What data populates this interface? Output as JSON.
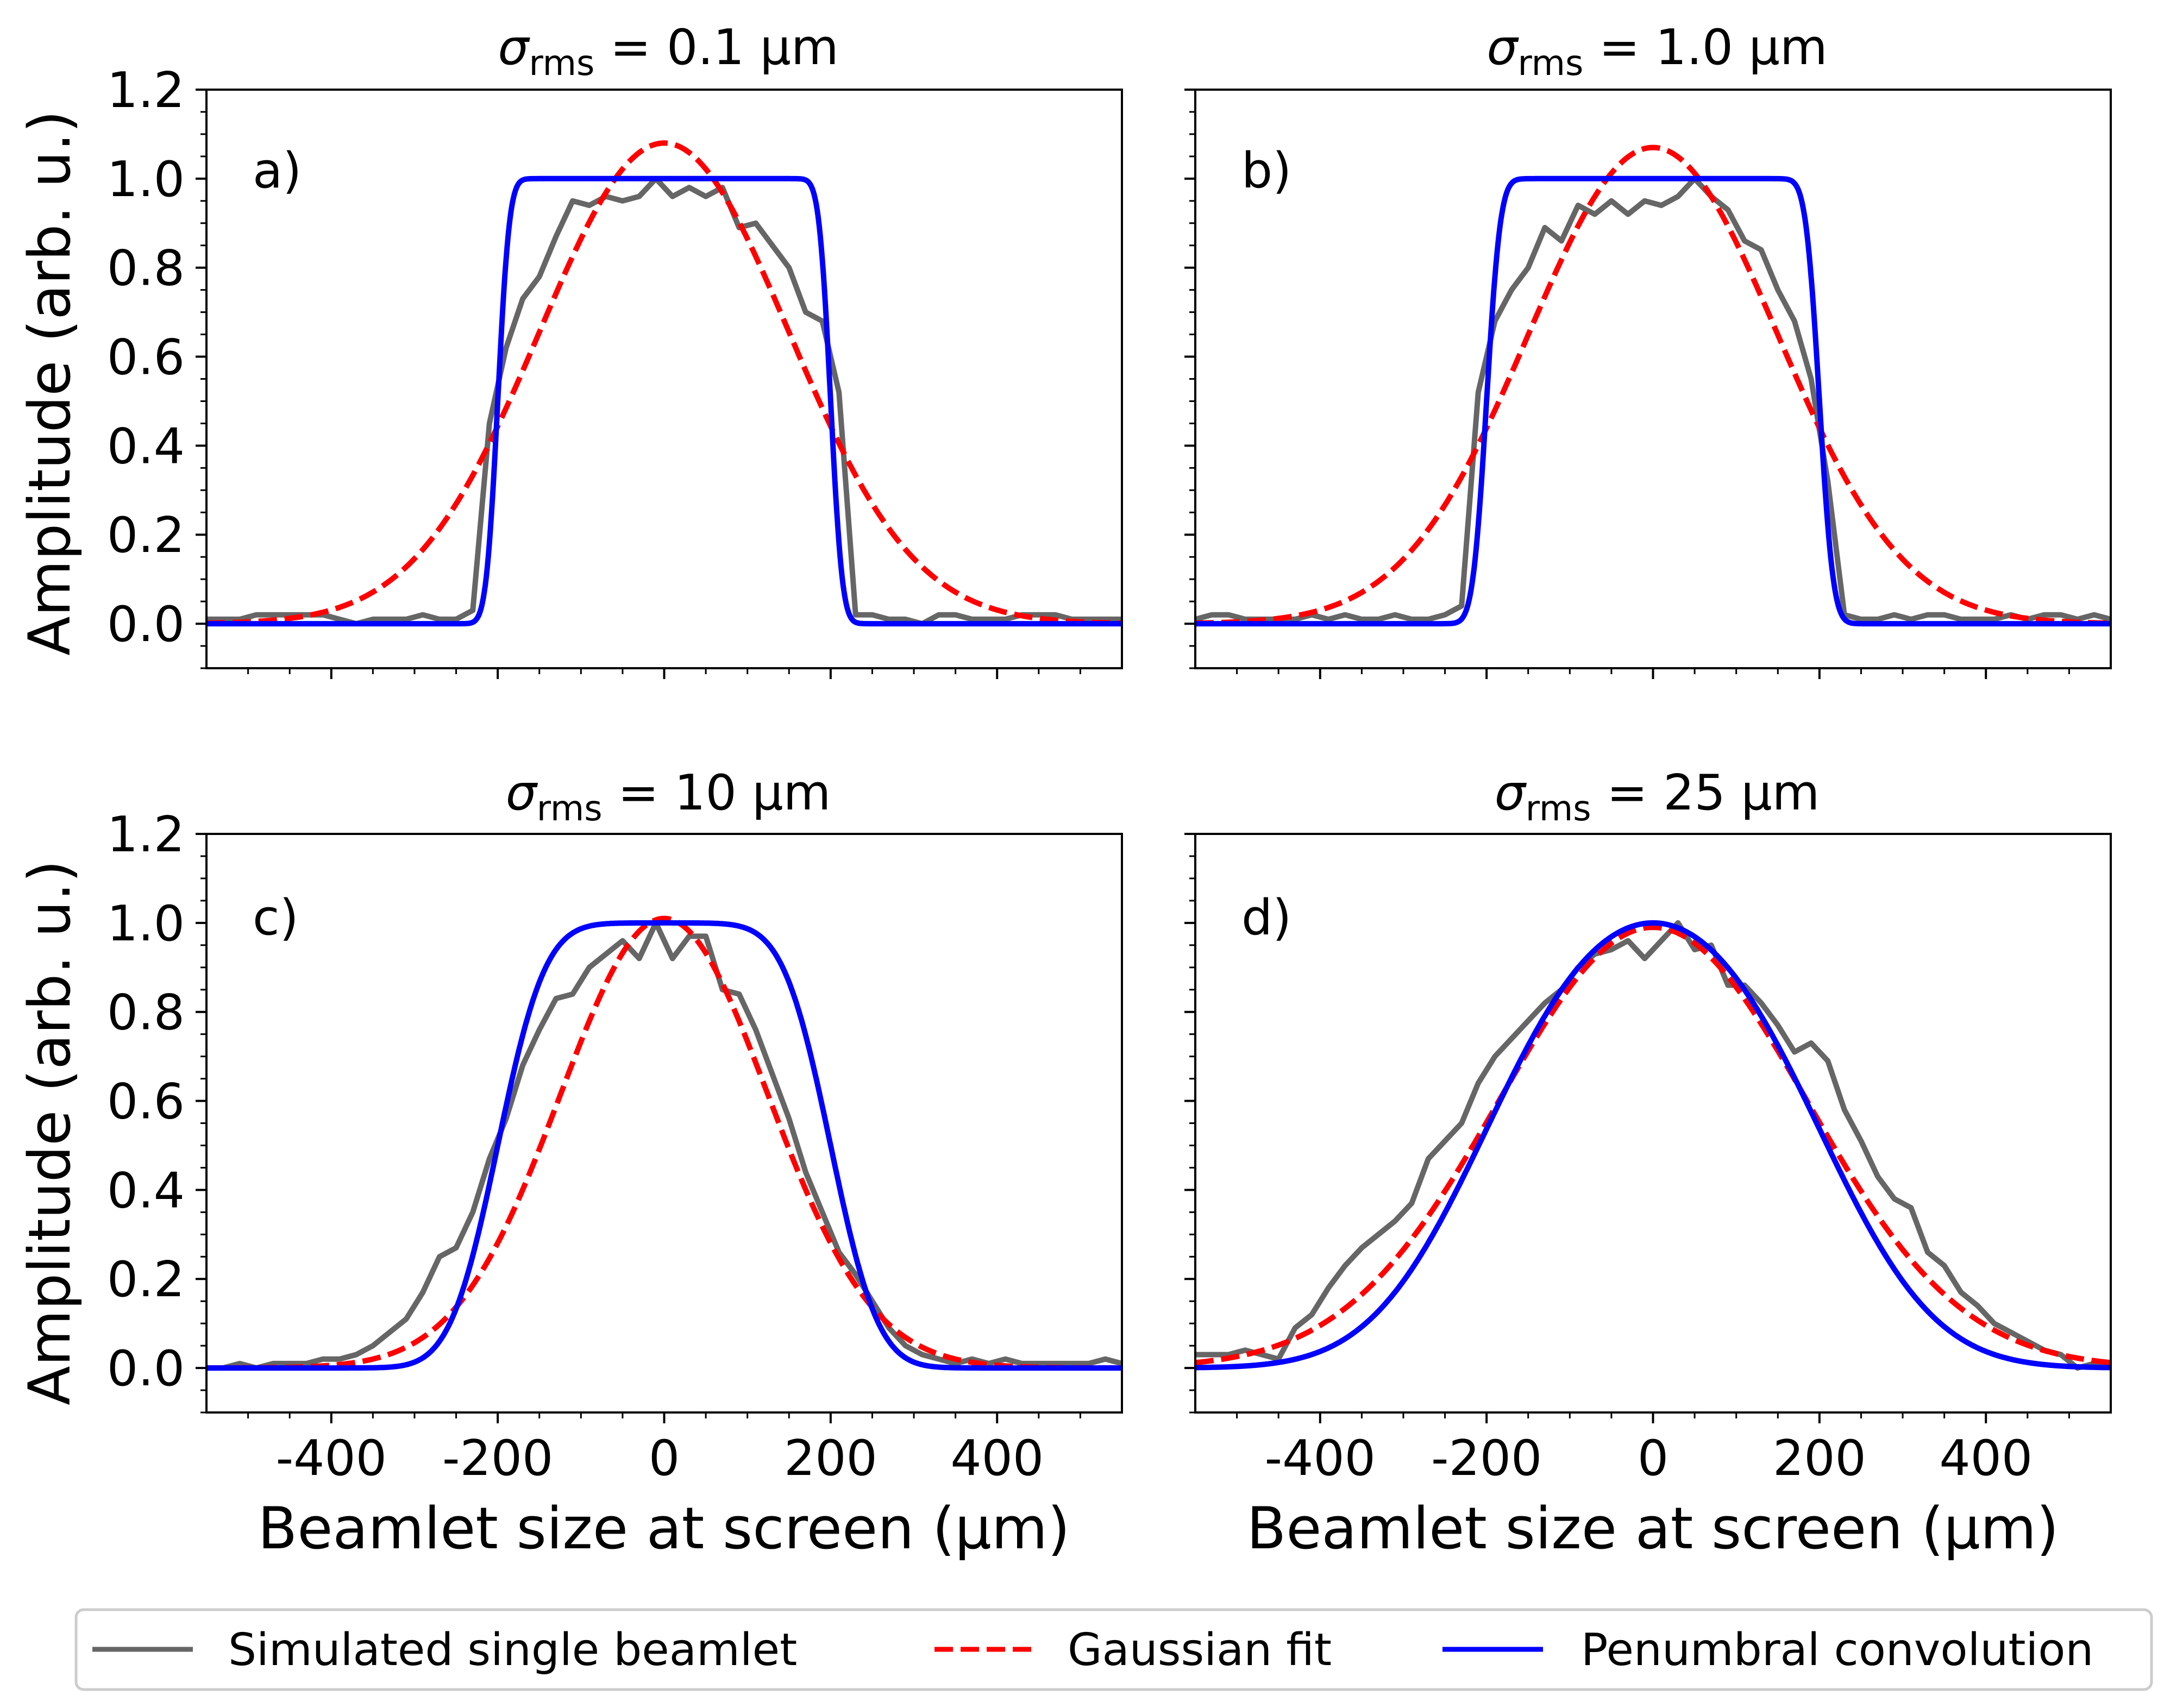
{
  "chart_data": {
    "type": "line",
    "ylabel": "Amplitude (arb. u.)",
    "xlabel": "Beamlet size at screen (μm)",
    "xlim": [
      -550,
      550
    ],
    "ylim": [
      -0.1,
      1.2
    ],
    "x_ticks": [
      -400,
      -200,
      0,
      200,
      400
    ],
    "x_tick_labels": [
      "-400",
      "-200",
      "0",
      "200",
      "400"
    ],
    "y_ticks": [
      0.0,
      0.2,
      0.4,
      0.6,
      0.8,
      1.0,
      1.2
    ],
    "y_tick_labels": [
      "0.0",
      "0.2",
      "0.4",
      "0.6",
      "0.8",
      "1.0",
      "1.2"
    ],
    "legend": {
      "position": "bottom-center",
      "entries": [
        {
          "label": "Simulated single beamlet",
          "color": "#666666",
          "style": "solid"
        },
        {
          "label": "Gaussian fit",
          "color": "#ff0000",
          "style": "dashed"
        },
        {
          "label": "Penumbral convolution",
          "color": "#0000ff",
          "style": "solid"
        }
      ]
    },
    "colors": {
      "simulated": "#666666",
      "gaussian": "#ff0000",
      "penumbral": "#0000ff"
    },
    "panels": [
      {
        "letter": "a)",
        "title_symbol": "σ",
        "title_sub": "rms",
        "title_rest": " = 0.1 μm",
        "gaussian": {
          "amplitude": 1.08,
          "sigma": 150
        },
        "penumbral": {
          "half_width": 200,
          "edge_sigma": 11
        },
        "simulated": {
          "x": [
            -550,
            -530,
            -510,
            -490,
            -470,
            -450,
            -430,
            -410,
            -390,
            -370,
            -350,
            -330,
            -310,
            -290,
            -270,
            -250,
            -230,
            -210,
            -190,
            -170,
            -150,
            -130,
            -110,
            -90,
            -70,
            -50,
            -30,
            -10,
            10,
            30,
            50,
            70,
            90,
            110,
            130,
            150,
            170,
            190,
            210,
            230,
            250,
            270,
            290,
            310,
            330,
            350,
            370,
            390,
            410,
            430,
            450,
            470,
            490,
            510,
            530,
            550
          ],
          "y": [
            0.01,
            0.01,
            0.01,
            0.02,
            0.02,
            0.02,
            0.02,
            0.02,
            0.01,
            0.0,
            0.01,
            0.01,
            0.01,
            0.02,
            0.01,
            0.01,
            0.03,
            0.45,
            0.62,
            0.73,
            0.78,
            0.87,
            0.95,
            0.94,
            0.96,
            0.95,
            0.96,
            1.0,
            0.96,
            0.98,
            0.96,
            0.98,
            0.89,
            0.9,
            0.85,
            0.8,
            0.7,
            0.68,
            0.52,
            0.02,
            0.02,
            0.01,
            0.01,
            0.0,
            0.02,
            0.02,
            0.01,
            0.01,
            0.01,
            0.02,
            0.02,
            0.02,
            0.01,
            0.01,
            0.01,
            0.01
          ]
        }
      },
      {
        "letter": "b)",
        "title_symbol": "σ",
        "title_sub": "rms",
        "title_rest": " = 1.0 μm",
        "gaussian": {
          "amplitude": 1.07,
          "sigma": 150
        },
        "penumbral": {
          "half_width": 200,
          "edge_sigma": 13
        },
        "simulated": {
          "x": [
            -550,
            -530,
            -510,
            -490,
            -470,
            -450,
            -430,
            -410,
            -390,
            -370,
            -350,
            -330,
            -310,
            -290,
            -270,
            -250,
            -230,
            -210,
            -190,
            -170,
            -150,
            -130,
            -110,
            -90,
            -70,
            -50,
            -30,
            -10,
            10,
            30,
            50,
            70,
            90,
            110,
            130,
            150,
            170,
            190,
            210,
            230,
            250,
            270,
            290,
            310,
            330,
            350,
            370,
            390,
            410,
            430,
            450,
            470,
            490,
            510,
            530,
            550
          ],
          "y": [
            0.01,
            0.02,
            0.02,
            0.01,
            0.01,
            0.01,
            0.01,
            0.02,
            0.01,
            0.02,
            0.01,
            0.01,
            0.02,
            0.01,
            0.01,
            0.02,
            0.04,
            0.52,
            0.68,
            0.75,
            0.8,
            0.89,
            0.86,
            0.94,
            0.92,
            0.95,
            0.92,
            0.95,
            0.94,
            0.96,
            1.0,
            0.96,
            0.93,
            0.86,
            0.84,
            0.75,
            0.68,
            0.55,
            0.32,
            0.02,
            0.01,
            0.01,
            0.02,
            0.01,
            0.02,
            0.02,
            0.01,
            0.01,
            0.01,
            0.02,
            0.01,
            0.02,
            0.02,
            0.01,
            0.02,
            0.01
          ]
        }
      },
      {
        "letter": "c)",
        "title_symbol": "σ",
        "title_sub": "rms",
        "title_rest": " = 10 μm",
        "gaussian": {
          "amplitude": 1.01,
          "sigma": 125
        },
        "penumbral": {
          "half_width": 200,
          "edge_sigma": 45
        },
        "simulated": {
          "x": [
            -550,
            -530,
            -510,
            -490,
            -470,
            -450,
            -430,
            -410,
            -390,
            -370,
            -350,
            -330,
            -310,
            -290,
            -270,
            -250,
            -230,
            -210,
            -190,
            -170,
            -150,
            -130,
            -110,
            -90,
            -70,
            -50,
            -30,
            -10,
            10,
            30,
            50,
            70,
            90,
            110,
            130,
            150,
            170,
            190,
            210,
            230,
            250,
            270,
            290,
            310,
            330,
            350,
            370,
            390,
            410,
            430,
            450,
            470,
            490,
            510,
            530,
            550
          ],
          "y": [
            0.0,
            0.0,
            0.01,
            0.0,
            0.01,
            0.01,
            0.01,
            0.02,
            0.02,
            0.03,
            0.05,
            0.08,
            0.11,
            0.17,
            0.25,
            0.27,
            0.35,
            0.47,
            0.56,
            0.68,
            0.76,
            0.83,
            0.84,
            0.9,
            0.93,
            0.96,
            0.92,
            1.0,
            0.92,
            0.97,
            0.97,
            0.85,
            0.84,
            0.76,
            0.66,
            0.56,
            0.44,
            0.35,
            0.26,
            0.21,
            0.15,
            0.09,
            0.05,
            0.03,
            0.02,
            0.01,
            0.02,
            0.01,
            0.02,
            0.01,
            0.01,
            0.01,
            0.01,
            0.01,
            0.02,
            0.01
          ]
        }
      },
      {
        "letter": "d)",
        "title_symbol": "σ",
        "title_sub": "rms",
        "title_rest": " = 25 μm",
        "gaussian": {
          "amplitude": 0.99,
          "sigma": 185
        },
        "penumbral": {
          "half_width": 200,
          "edge_sigma": 110
        },
        "simulated": {
          "x": [
            -550,
            -530,
            -510,
            -490,
            -470,
            -450,
            -430,
            -410,
            -390,
            -370,
            -350,
            -330,
            -310,
            -290,
            -270,
            -250,
            -230,
            -210,
            -190,
            -170,
            -150,
            -130,
            -110,
            -90,
            -70,
            -50,
            -30,
            -10,
            10,
            30,
            50,
            70,
            90,
            110,
            130,
            150,
            170,
            190,
            210,
            230,
            250,
            270,
            290,
            310,
            330,
            350,
            370,
            390,
            410,
            430,
            450,
            470,
            490,
            510,
            530,
            550
          ],
          "y": [
            0.03,
            0.03,
            0.03,
            0.04,
            0.03,
            0.02,
            0.09,
            0.12,
            0.18,
            0.23,
            0.27,
            0.3,
            0.33,
            0.37,
            0.47,
            0.51,
            0.55,
            0.64,
            0.7,
            0.74,
            0.78,
            0.82,
            0.85,
            0.9,
            0.93,
            0.94,
            0.96,
            0.92,
            0.96,
            1.0,
            0.94,
            0.95,
            0.86,
            0.86,
            0.82,
            0.77,
            0.71,
            0.73,
            0.69,
            0.58,
            0.51,
            0.43,
            0.38,
            0.36,
            0.26,
            0.23,
            0.17,
            0.14,
            0.1,
            0.08,
            0.06,
            0.04,
            0.03,
            0.0,
            0.01,
            0.01
          ]
        }
      }
    ]
  }
}
